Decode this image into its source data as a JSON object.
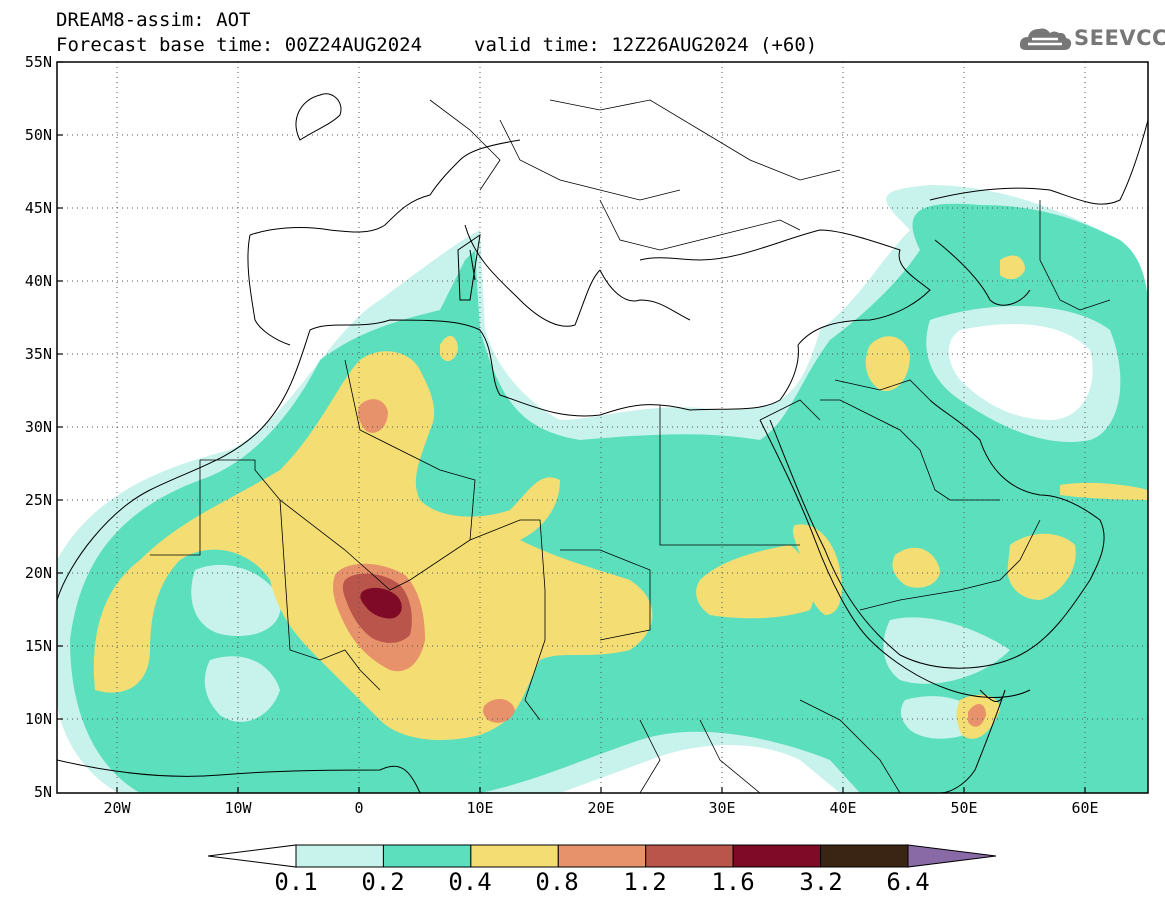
{
  "header": {
    "title": "DREAM8-assim: AOT",
    "base_time": "Forecast base time: 00Z24AUG2024",
    "valid_time": "valid time: 12Z26AUG2024 (+60)"
  },
  "logo": {
    "text": "SEEVCCC",
    "icon": "cloud-icon"
  },
  "map": {
    "projection": "lat-lon",
    "lon_range": [
      -25,
      65
    ],
    "lat_range": [
      5,
      55
    ],
    "lat_labels": [
      "55N",
      "50N",
      "45N",
      "40N",
      "35N",
      "30N",
      "25N",
      "20N",
      "15N",
      "10N",
      "5N"
    ],
    "lon_labels": [
      "20W",
      "10W",
      "0",
      "10E",
      "20E",
      "30E",
      "40E",
      "50E",
      "60E"
    ],
    "grid": "dotted",
    "variable": "AOT"
  },
  "colorbar": {
    "labels": [
      "0.1",
      "0.2",
      "0.4",
      "0.8",
      "1.2",
      "1.6",
      "3.2",
      "6.4"
    ],
    "colors": [
      "#c8f2ec",
      "#5cdfbd",
      "#f4de73",
      "#e8926b",
      "#b9554a",
      "#7e0a27",
      "#3a2515",
      "#8a6aa6"
    ],
    "extends": "both"
  }
}
